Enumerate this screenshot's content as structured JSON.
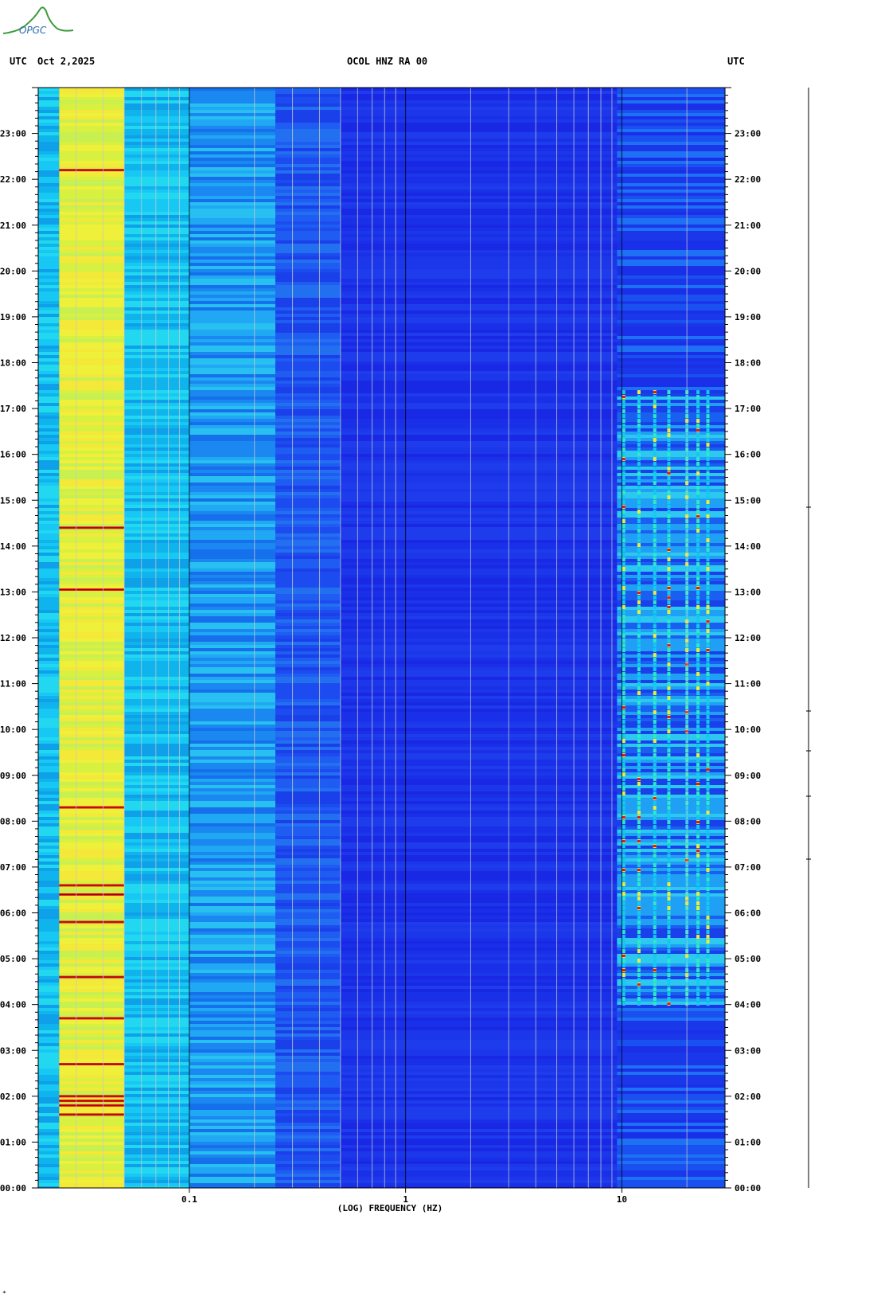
{
  "header": {
    "left_label": "UTC",
    "date": "Oct 2,2025",
    "station": "OCOL HNZ RA 00",
    "right_label": "UTC"
  },
  "logo": {
    "text": "OPGC"
  },
  "colors": {
    "background_blue": "#1a2fe6",
    "cyan": "#14c8f0",
    "green_cyan": "#2ee8c8",
    "yellow": "#e8f03c",
    "red": "#e01818",
    "dark_red": "#a00000",
    "gridline": "#c8c8c8"
  },
  "chart_data": {
    "type": "heatmap",
    "title": "OCOL HNZ RA 00",
    "xlabel": "(LOG) FREQUENCY (HZ)",
    "ylabel": "",
    "x_scale": "log",
    "xlim": [
      0.02,
      30
    ],
    "ylim_hours": [
      0,
      24
    ],
    "x_tick_labels": [
      "0.1",
      "1",
      "10"
    ],
    "x_tick_values": [
      0.1,
      1,
      10
    ],
    "y_tick_labels": [
      "00:00",
      "01:00",
      "02:00",
      "03:00",
      "04:00",
      "05:00",
      "06:00",
      "07:00",
      "08:00",
      "09:00",
      "10:00",
      "11:00",
      "12:00",
      "13:00",
      "14:00",
      "15:00",
      "16:00",
      "17:00",
      "18:00",
      "19:00",
      "20:00",
      "21:00",
      "22:00",
      "23:00"
    ],
    "y_tick_hours": [
      0,
      1,
      2,
      3,
      4,
      5,
      6,
      7,
      8,
      9,
      10,
      11,
      12,
      13,
      14,
      15,
      16,
      17,
      18,
      19,
      20,
      21,
      22,
      23
    ],
    "grid": true,
    "frequency_bands": [
      {
        "f_min": 0.02,
        "f_max": 0.025,
        "level": "cyan"
      },
      {
        "f_min": 0.025,
        "f_max": 0.05,
        "level": "yellow"
      },
      {
        "f_min": 0.05,
        "f_max": 0.1,
        "level": "cyan"
      },
      {
        "f_min": 0.1,
        "f_max": 0.25,
        "level": "light-blue"
      },
      {
        "f_min": 0.25,
        "f_max": 0.5,
        "level": "blue"
      },
      {
        "f_min": 0.5,
        "f_max": 9.5,
        "level": "deep-blue"
      },
      {
        "f_min": 9.5,
        "f_max": 30,
        "level": "activity"
      }
    ],
    "strong_events_hours": [
      1.6,
      1.8,
      1.9,
      2.0,
      2.7,
      3.7,
      4.6,
      5.8,
      6.4,
      6.6,
      8.3,
      13.05,
      14.4,
      22.2
    ],
    "high_freq_activity_hours": [
      4.0,
      17.4
    ]
  }
}
